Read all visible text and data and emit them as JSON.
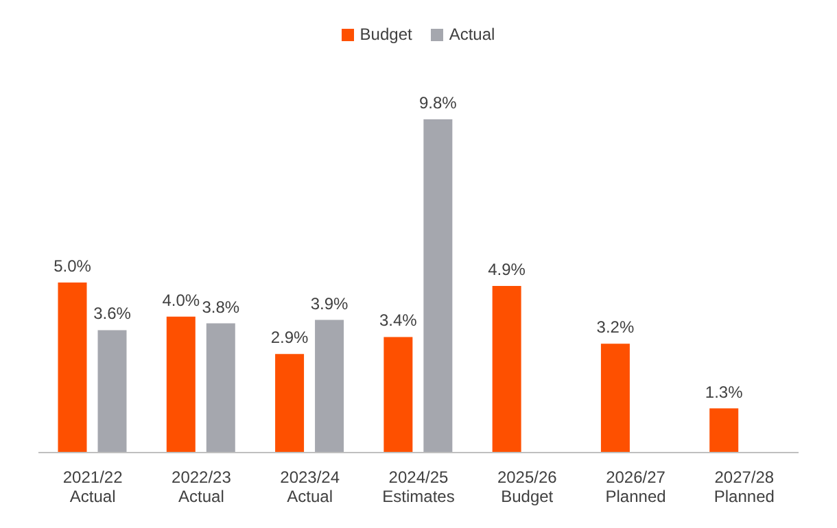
{
  "chart_data": {
    "type": "bar",
    "categories": [
      "2021/22\nActual",
      "2022/23\nActual",
      "2023/24\nActual",
      "2024/25\nEstimates",
      "2025/26\nBudget",
      "2026/27\nPlanned",
      "2027/28\nPlanned"
    ],
    "series": [
      {
        "name": "Budget",
        "color": "#fe5000",
        "values": [
          5.0,
          4.0,
          2.9,
          3.4,
          4.9,
          3.2,
          1.3
        ],
        "value_labels": [
          "5.0%",
          "4.0%",
          "2.9%",
          "3.4%",
          "4.9%",
          "3.2%",
          "1.3%"
        ]
      },
      {
        "name": "Actual",
        "color": "#a5a7ae",
        "values": [
          3.6,
          3.8,
          3.9,
          9.8,
          null,
          null,
          null
        ],
        "value_labels": [
          "3.6%",
          "3.8%",
          "3.9%",
          "9.8%",
          null,
          null,
          null
        ]
      }
    ],
    "legend": "top",
    "grid": false
  }
}
